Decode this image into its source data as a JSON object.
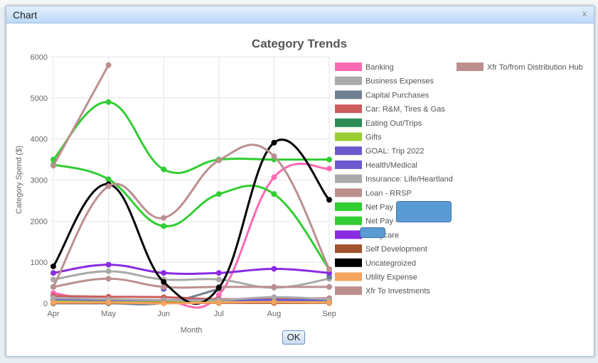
{
  "dialog": {
    "title": "Chart",
    "close_label": "x",
    "ok_label": "OK"
  },
  "chart_data": {
    "type": "line",
    "title": "Category Trends",
    "xlabel": "Month",
    "ylabel": "Category Spend ($)",
    "ylim": [
      0,
      6000
    ],
    "yticks": [
      "0",
      "1000",
      "2000",
      "3000",
      "4000",
      "5000",
      "6000"
    ],
    "categories": [
      "Apr",
      "May",
      "Jun",
      "Jul",
      "Aug",
      "Sep"
    ],
    "grid": true,
    "legend_position": "right",
    "series": [
      {
        "name": "Banking",
        "color": "#ff69b4",
        "values": [
          250,
          30,
          50,
          200,
          3070,
          3280
        ]
      },
      {
        "name": "Business Expenses",
        "color": "#a9a9a9",
        "values": [
          580,
          780,
          580,
          580,
          380,
          600
        ]
      },
      {
        "name": "Capital Purchases",
        "color": "#708090",
        "values": [
          0,
          0,
          10,
          350,
          null,
          650
        ]
      },
      {
        "name": "Car: R&M, Tires & Gas",
        "color": "#cd5c5c",
        "values": [
          180,
          160,
          150,
          100,
          120,
          120
        ]
      },
      {
        "name": "Eating Out/Trips",
        "color": "#2e8b57",
        "values": [
          20,
          10,
          10,
          20,
          20,
          20
        ]
      },
      {
        "name": "Gifts",
        "color": "#9acd32",
        "values": [
          50,
          40,
          40,
          40,
          40,
          40
        ]
      },
      {
        "name": "GOAL: Trip 2022",
        "color": "#6a5acd",
        "values": [
          100,
          80,
          80,
          80,
          80,
          80
        ]
      },
      {
        "name": "Health/Medical",
        "color": "#6a5acd",
        "values": [
          null,
          null,
          350,
          null,
          null,
          null
        ]
      },
      {
        "name": "Insurance: Life/Heartland",
        "color": "#a9a9a9",
        "values": [
          130,
          100,
          80,
          80,
          150,
          100
        ]
      },
      {
        "name": "Loan - RRSP",
        "color": "#bc8f8f",
        "values": [
          400,
          600,
          400,
          400,
          400,
          400
        ]
      },
      {
        "name": "Net Pay - ",
        "color": "#32cd32",
        "values": [
          3500,
          4900,
          3260,
          3500,
          3500,
          3500
        ]
      },
      {
        "name": "Net Pay - ",
        "color": "#32cd32",
        "values": [
          3380,
          3020,
          1880,
          2660,
          2660,
          830
        ]
      },
      {
        "name": ": Daycare",
        "color": "#8a2be2",
        "values": [
          740,
          940,
          740,
          740,
          840,
          740
        ]
      },
      {
        "name": "Self Development",
        "color": "#a0522d",
        "values": [
          10,
          10,
          10,
          10,
          10,
          10
        ]
      },
      {
        "name": "Uncategroized",
        "color": "#000000",
        "values": [
          900,
          2900,
          520,
          380,
          3910,
          2520
        ]
      },
      {
        "name": "Utility Expense",
        "color": "#f4a460",
        "values": [
          20,
          20,
          0,
          20,
          30,
          20
        ]
      },
      {
        "name": "Xfr To Investments",
        "color": "#bc8f8f",
        "values": [
          400,
          2850,
          2080,
          3480,
          3580,
          830
        ]
      },
      {
        "name": "Xfr To/from Distribution Hub",
        "color": "#bc8f8f",
        "values": [
          3350,
          5800,
          null,
          null,
          null,
          null
        ]
      }
    ]
  }
}
